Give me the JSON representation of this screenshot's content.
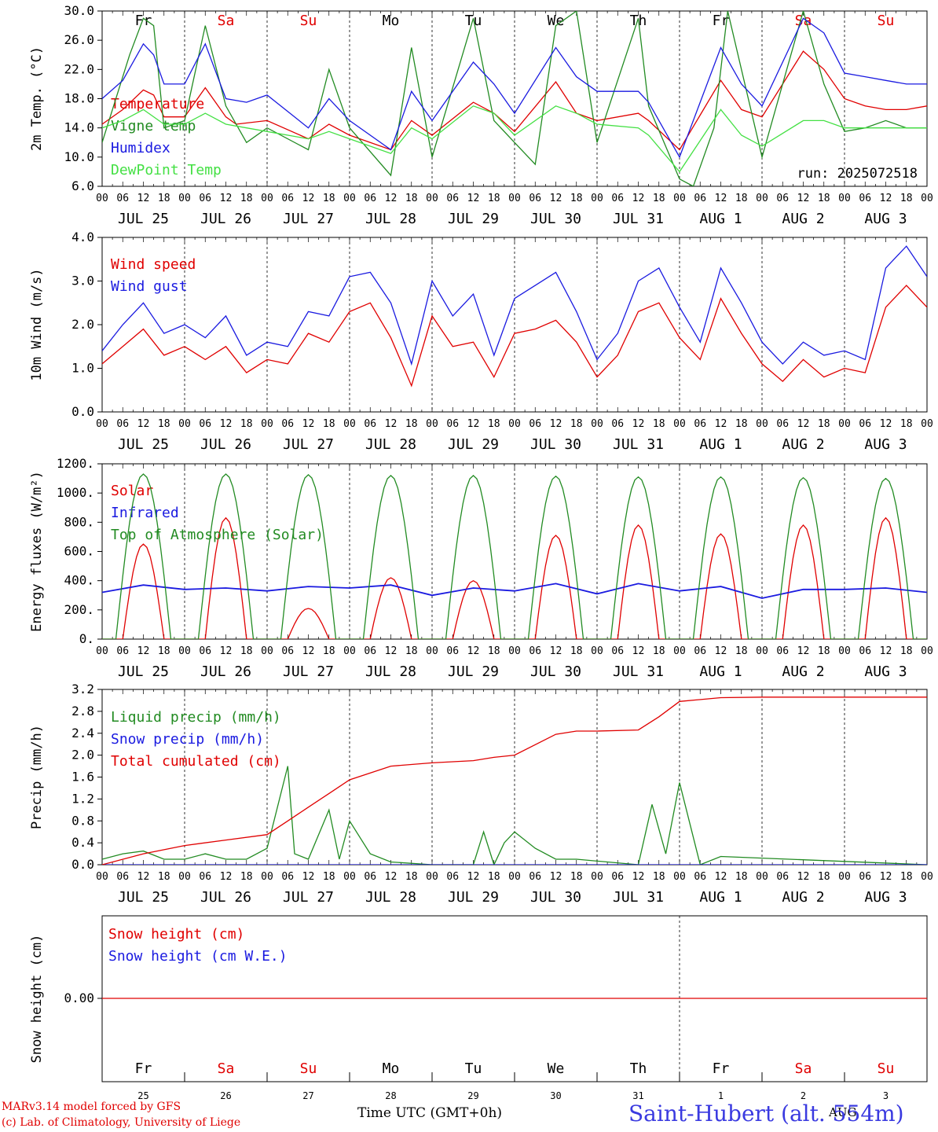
{
  "footer": {
    "credit_line1": "MARv3.14 model forced by GFS",
    "credit_line2": "(c) Lab. of Climatology, University of Liege",
    "xaxis_title": "Time UTC (GMT+0h)",
    "aug_label": "AUG",
    "station": "Saint-Hubert (alt. 554m)"
  },
  "chart_data": {
    "common": {
      "hour_labels": [
        "00",
        "06",
        "12",
        "18"
      ],
      "date_labels": [
        "JUL 25",
        "JUL 26",
        "JUL 27",
        "JUL 28",
        "JUL 29",
        "JUL 30",
        "JUL 31",
        "AUG  1",
        "AUG  2",
        "AUG  3"
      ],
      "weekdays": [
        "Fr",
        "Sa",
        "Su",
        "Mo",
        "Tu",
        "We",
        "Th",
        "Fr",
        "Sa",
        "Su"
      ],
      "weekday_colors": [
        "#000000",
        "#e00000",
        "#e00000",
        "#000000",
        "#000000",
        "#000000",
        "#000000",
        "#000000",
        "#e00000",
        "#e00000"
      ],
      "day_numbers": [
        "25",
        "26",
        "27",
        "28",
        "29",
        "30",
        "31",
        "1",
        "2",
        "3"
      ],
      "x_unit": "hours from 2025-07-25 00 UTC",
      "run_label": "run: 2025072518"
    },
    "charts": [
      {
        "type": "line",
        "ylabel": "2m Temp. (°C)",
        "ylim": [
          6,
          30
        ],
        "yticks": [
          6,
          10,
          14,
          18,
          22,
          26,
          30
        ],
        "ytick_labels": [
          "6.0",
          "10.0",
          "14.0",
          "18.0",
          "22.0",
          "26.0",
          "30.0"
        ],
        "series": [
          {
            "name": "Temperature",
            "color": "#e00000",
            "x": [
              0,
              6,
              12,
              15,
              18,
              24,
              30,
              36,
              39,
              48,
              60,
              66,
              72,
              84,
              90,
              96,
              108,
              114,
              120,
              132,
              138,
              144,
              156,
              159,
              168,
              180,
              186,
              192,
              204,
              210,
              216,
              222,
              228,
              234,
              240
            ],
            "y": [
              14.5,
              16.5,
              19.2,
              18.5,
              15.5,
              15.5,
              19.5,
              15.5,
              14.5,
              15,
              12.5,
              14.5,
              13,
              11,
              15,
              13,
              17.5,
              16,
              13.5,
              20.3,
              16,
              15,
              16,
              15,
              11,
              20.5,
              16.5,
              15.5,
              24.5,
              22,
              18,
              17,
              16.5,
              16.5,
              17
            ]
          },
          {
            "name": "Vigne temp",
            "color": "#228b22",
            "x": [
              0,
              8,
              12,
              15,
              18,
              24,
              30,
              36,
              42,
              48,
              60,
              66,
              72,
              84,
              90,
              96,
              108,
              114,
              120,
              126,
              132,
              138,
              144,
              156,
              159,
              168,
              172,
              178,
              182,
              192,
              204,
              210,
              216,
              222,
              228,
              234,
              240
            ],
            "y": [
              12,
              24,
              29,
              28,
              14,
              15,
              28,
              17,
              12,
              14,
              11,
              22,
              14,
              7.5,
              25,
              10,
              29,
              15,
              12,
              9,
              28,
              30,
              12,
              29,
              17,
              7,
              6,
              14,
              30,
              10,
              30,
              20,
              13.5,
              14,
              15,
              14,
              14
            ]
          },
          {
            "name": "Humidex",
            "color": "#1a1ae0",
            "x": [
              0,
              6,
              12,
              15,
              18,
              24,
              30,
              36,
              42,
              48,
              60,
              66,
              72,
              84,
              90,
              96,
              108,
              114,
              120,
              132,
              138,
              144,
              156,
              159,
              168,
              180,
              186,
              192,
              204,
              210,
              216,
              222,
              228,
              234,
              240
            ],
            "y": [
              18,
              20.5,
              25.5,
              24,
              20,
              20,
              25.5,
              18,
              17.5,
              18.5,
              14,
              18,
              15,
              11,
              19,
              15,
              23,
              20,
              16,
              25,
              21,
              19,
              19,
              17.5,
              10,
              25,
              20,
              17,
              29,
              27,
              21.5,
              21,
              20.5,
              20,
              20
            ]
          },
          {
            "name": "DewPoint Temp",
            "color": "#44e044",
            "x": [
              0,
              6,
              12,
              18,
              24,
              30,
              36,
              42,
              48,
              60,
              66,
              72,
              84,
              90,
              96,
              108,
              114,
              120,
              132,
              138,
              144,
              156,
              159,
              168,
              180,
              186,
              192,
              204,
              210,
              216,
              222,
              228,
              234,
              240
            ],
            "y": [
              14,
              15,
              16.5,
              14.5,
              14.5,
              16,
              14.5,
              14,
              13.5,
              12.5,
              13.5,
              12.5,
              10.5,
              14,
              12.5,
              17,
              16,
              13,
              17,
              16,
              14.5,
              14,
              13,
              8,
              16.5,
              13,
              11.5,
              15,
              15,
              14,
              14,
              14,
              14,
              14
            ]
          }
        ]
      },
      {
        "type": "line",
        "ylabel": "10m Wind (m/s)",
        "ylim": [
          0,
          4
        ],
        "yticks": [
          0,
          1,
          2,
          3,
          4
        ],
        "ytick_labels": [
          "0.0",
          "1.0",
          "2.0",
          "3.0",
          "4.0"
        ],
        "series": [
          {
            "name": "Wind speed",
            "color": "#e00000",
            "x": [
              0,
              6,
              12,
              18,
              24,
              30,
              36,
              42,
              48,
              54,
              60,
              66,
              72,
              78,
              84,
              90,
              96,
              102,
              108,
              114,
              120,
              126,
              132,
              138,
              144,
              150,
              156,
              162,
              168,
              174,
              180,
              186,
              192,
              198,
              204,
              210,
              216,
              222,
              228,
              234,
              240
            ],
            "y": [
              1.1,
              1.5,
              1.9,
              1.3,
              1.5,
              1.2,
              1.5,
              0.9,
              1.2,
              1.1,
              1.8,
              1.6,
              2.3,
              2.5,
              1.7,
              0.6,
              2.2,
              1.5,
              1.6,
              0.8,
              1.8,
              1.9,
              2.1,
              1.6,
              0.8,
              1.3,
              2.3,
              2.5,
              1.7,
              1.2,
              2.6,
              1.8,
              1.1,
              0.7,
              1.2,
              0.8,
              1.0,
              0.9,
              2.4,
              2.9,
              2.4
            ]
          },
          {
            "name": "Wind gust",
            "color": "#1a1ae0",
            "x": [
              0,
              6,
              12,
              18,
              24,
              30,
              36,
              42,
              48,
              54,
              60,
              66,
              72,
              78,
              84,
              90,
              96,
              102,
              108,
              114,
              120,
              126,
              132,
              138,
              144,
              150,
              156,
              162,
              168,
              174,
              180,
              186,
              192,
              198,
              204,
              210,
              216,
              222,
              228,
              234,
              240
            ],
            "y": [
              1.4,
              2.0,
              2.5,
              1.8,
              2.0,
              1.7,
              2.2,
              1.3,
              1.6,
              1.5,
              2.3,
              2.2,
              3.1,
              3.2,
              2.5,
              1.1,
              3.0,
              2.2,
              2.7,
              1.3,
              2.6,
              2.9,
              3.2,
              2.3,
              1.2,
              1.8,
              3.0,
              3.3,
              2.4,
              1.6,
              3.3,
              2.5,
              1.6,
              1.1,
              1.6,
              1.3,
              1.4,
              1.2,
              3.3,
              3.8,
              3.1
            ]
          }
        ]
      },
      {
        "type": "line",
        "ylabel": "Energy fluxes (W/m²)",
        "ylim": [
          0,
          1200
        ],
        "yticks": [
          0,
          200,
          400,
          600,
          800,
          1000,
          1200
        ],
        "ytick_labels": [
          "0.",
          "200.",
          "400.",
          "600.",
          "800.",
          "1000.",
          "1200."
        ],
        "series": [
          {
            "name": "Solar",
            "color": "#e00000",
            "daily_max": [
              650,
              830,
              210,
              420,
              400,
              710,
              780,
              720,
              780,
              830
            ]
          },
          {
            "name": "Infrared",
            "color": "#1a1ae0",
            "x": [
              0,
              12,
              24,
              36,
              48,
              60,
              72,
              84,
              96,
              108,
              120,
              132,
              144,
              156,
              168,
              180,
              192,
              204,
              216,
              228,
              240
            ],
            "y": [
              320,
              370,
              340,
              350,
              330,
              360,
              350,
              370,
              300,
              350,
              330,
              380,
              310,
              380,
              330,
              360,
              280,
              340,
              340,
              350,
              320
            ]
          },
          {
            "name": "Top of Atmosphere (Solar)",
            "color": "#228b22",
            "daily_max": [
              1130,
              1130,
              1125,
              1120,
              1120,
              1115,
              1110,
              1110,
              1105,
              1100
            ]
          }
        ]
      },
      {
        "type": "line",
        "ylabel": "Precip (mm/h)",
        "ylim": [
          0,
          3.2
        ],
        "yticks": [
          0,
          0.4,
          0.8,
          1.2,
          1.6,
          2.0,
          2.4,
          2.8,
          3.2
        ],
        "ytick_labels": [
          "0.0",
          "0.4",
          "0.8",
          "1.2",
          "1.6",
          "2.0",
          "2.4",
          "2.8",
          "3.2"
        ],
        "series": [
          {
            "name": "Liquid precip (mm/h)",
            "color": "#228b22",
            "x": [
              0,
              6,
              12,
              18,
              24,
              30,
              36,
              42,
              48,
              54,
              56,
              60,
              66,
              69,
              72,
              78,
              84,
              96,
              108,
              111,
              114,
              117,
              120,
              126,
              132,
              138,
              156,
              160,
              164,
              168,
              174,
              180,
              240
            ],
            "y": [
              0.1,
              0.2,
              0.25,
              0.1,
              0.1,
              0.2,
              0.1,
              0.1,
              0.3,
              1.8,
              0.2,
              0.1,
              1.0,
              0.1,
              0.8,
              0.2,
              0.05,
              0,
              0,
              0.6,
              0,
              0.4,
              0.6,
              0.3,
              0.1,
              0.1,
              0,
              1.1,
              0.2,
              1.5,
              0,
              0.15,
              0
            ]
          },
          {
            "name": "Snow precip (mm/h)",
            "color": "#1a1ae0",
            "x": [
              0,
              240
            ],
            "y": [
              0,
              0
            ]
          },
          {
            "name": "Total cumulated (cm)",
            "color": "#e00000",
            "x": [
              0,
              12,
              24,
              36,
              48,
              54,
              60,
              66,
              72,
              84,
              96,
              108,
              114,
              120,
              132,
              138,
              144,
              156,
              162,
              168,
              180,
              192,
              204,
              216,
              240
            ],
            "y": [
              0,
              0.2,
              0.35,
              0.45,
              0.55,
              0.8,
              1.05,
              1.3,
              1.55,
              1.8,
              1.86,
              1.9,
              1.96,
              2.0,
              2.38,
              2.44,
              2.44,
              2.46,
              2.7,
              2.98,
              3.05,
              3.06,
              3.06,
              3.06,
              3.06
            ]
          }
        ]
      },
      {
        "type": "line",
        "ylabel": "Snow height (cm)",
        "ytick_labels": [
          "0.00"
        ],
        "series": [
          {
            "name": "Snow height (cm)",
            "color": "#e00000",
            "x": [
              0,
              240
            ],
            "y": [
              0,
              0
            ]
          },
          {
            "name": "Snow height (cm W.E.)",
            "color": "#1a1ae0"
          }
        ]
      }
    ]
  }
}
